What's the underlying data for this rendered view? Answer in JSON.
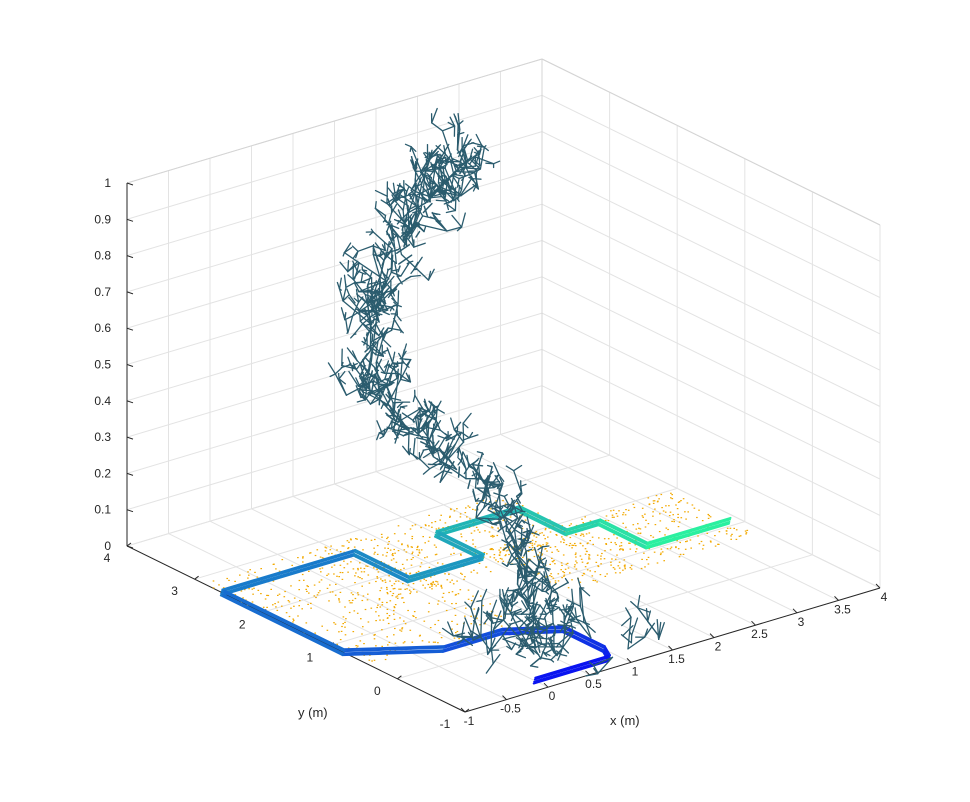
{
  "chart_data": {
    "type": "3d-line-scatter",
    "xlabel": "x (m)",
    "ylabel": "y (m)",
    "zlabel": "",
    "xlim": [
      -1,
      4
    ],
    "ylim": [
      -1,
      4
    ],
    "zlim": [
      0,
      1
    ],
    "x_ticks": [
      "-1",
      "-0.5",
      "0",
      "0.5",
      "1",
      "1.5",
      "2",
      "2.5",
      "3",
      "3.5",
      "4"
    ],
    "y_ticks": [
      "-1",
      "0",
      "1",
      "2",
      "3",
      "4"
    ],
    "z_ticks": [
      "0",
      "0.1",
      "0.2",
      "0.3",
      "0.4",
      "0.5",
      "0.6",
      "0.7",
      "0.8",
      "0.9",
      "1"
    ],
    "grid": true,
    "colors": {
      "trajectory_start": "#0a14f0",
      "trajectory_end": "#2af0a0",
      "branches": "#2b5c6e",
      "points": "#f2a900"
    },
    "trajectory": {
      "x": [
        0.0,
        0.9,
        1.0,
        1.0,
        0.5,
        -0.2,
        -1.0,
        -1.0,
        0.6,
        0.6,
        1.5,
        1.5,
        2.5,
        2.5,
        2.9,
        2.9,
        3.9
      ],
      "y": [
        -0.8,
        -0.8,
        -0.6,
        0.0,
        0.3,
        0.3,
        0.8,
        2.6,
        2.6,
        1.8,
        1.8,
        2.5,
        2.5,
        1.8,
        1.8,
        1.1,
        1.1
      ]
    },
    "tree_trunk": {
      "x": [
        0.4,
        0.55,
        0.8,
        1.0,
        1.0,
        0.95,
        0.9,
        1.0,
        1.2,
        1.3,
        1.55,
        1.8,
        2.0,
        2.3,
        2.55,
        2.8
      ],
      "y": [
        -0.3,
        -0.1,
        0.3,
        0.8,
        1.3,
        1.8,
        2.3,
        2.8,
        3.1,
        3.2,
        3.3,
        3.3,
        3.4,
        3.5,
        3.55,
        3.6
      ],
      "z": [
        0.0,
        0.05,
        0.12,
        0.2,
        0.27,
        0.33,
        0.37,
        0.4,
        0.47,
        0.55,
        0.62,
        0.7,
        0.76,
        0.8,
        0.82,
        0.84
      ]
    },
    "ground_point_regions": [
      {
        "x": [
          -1.0,
          0.9
        ],
        "y": [
          0.4,
          2.9
        ]
      },
      {
        "x": [
          0.2,
          2.6
        ],
        "y": [
          1.5,
          2.9
        ]
      },
      {
        "x": [
          1.6,
          3.9
        ],
        "y": [
          0.7,
          2.0
        ]
      }
    ]
  }
}
